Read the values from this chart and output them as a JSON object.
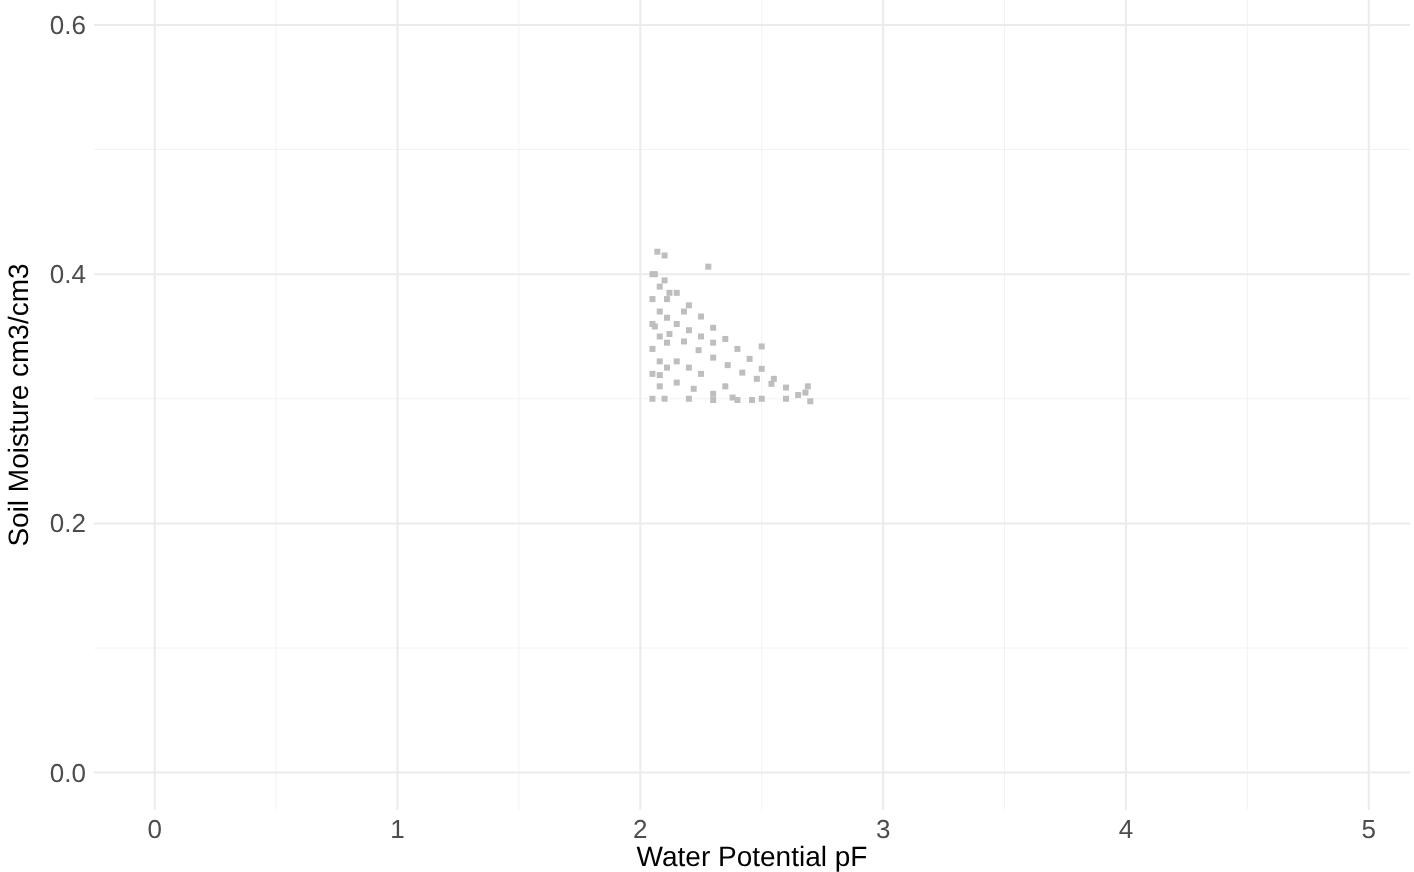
{
  "chart_data": {
    "type": "scatter",
    "xlabel": "Water Potential pF",
    "ylabel": "Soil Moisture cm3/cm3",
    "xlim": [
      -0.25,
      5.17
    ],
    "ylim": [
      -0.03,
      0.62
    ],
    "xticks": [
      0,
      1,
      2,
      3,
      4,
      5
    ],
    "yticks": [
      {
        "value": 0,
        "label": "0.0"
      },
      {
        "value": 0.2,
        "label": "0.2"
      },
      {
        "value": 0.4,
        "label": "0.4"
      },
      {
        "value": 0.6,
        "label": "0.6"
      }
    ],
    "grid": true,
    "marker": "square",
    "series": [
      {
        "color": "#bebebe",
        "x": [
          2.06,
          2.1,
          2.15,
          2.2,
          2.25,
          2.3,
          2.35,
          2.4,
          2.45,
          2.5,
          2.55,
          2.6,
          2.65,
          2.7,
          2.69,
          2.68,
          2.06,
          2.12,
          2.18,
          2.24,
          2.3,
          2.36,
          2.42,
          2.48,
          2.54,
          2.08,
          2.15,
          2.22,
          2.3,
          2.38,
          2.46,
          2.1,
          2.2,
          2.3,
          2.4,
          2.5,
          2.6,
          2.05,
          2.05,
          2.05,
          2.05,
          2.05,
          2.05,
          2.08,
          2.08,
          2.08,
          2.08,
          2.08,
          2.11,
          2.11,
          2.11,
          2.11,
          2.15,
          2.15,
          2.2,
          2.2,
          2.25,
          2.25,
          2.3,
          2.35,
          2.18,
          2.12,
          2.07,
          2.1,
          2.28,
          2.5
        ],
        "values": [
          0.4,
          0.395,
          0.385,
          0.375,
          0.366,
          0.357,
          0.348,
          0.34,
          0.332,
          0.324,
          0.316,
          0.309,
          0.303,
          0.298,
          0.31,
          0.305,
          0.358,
          0.352,
          0.346,
          0.339,
          0.333,
          0.327,
          0.321,
          0.316,
          0.312,
          0.319,
          0.313,
          0.308,
          0.304,
          0.301,
          0.299,
          0.3,
          0.3,
          0.299,
          0.299,
          0.3,
          0.3,
          0.3,
          0.32,
          0.34,
          0.36,
          0.38,
          0.4,
          0.31,
          0.33,
          0.35,
          0.37,
          0.39,
          0.325,
          0.345,
          0.365,
          0.38,
          0.33,
          0.36,
          0.355,
          0.325,
          0.35,
          0.32,
          0.345,
          0.31,
          0.37,
          0.385,
          0.418,
          0.415,
          0.406,
          0.342
        ]
      }
    ]
  }
}
